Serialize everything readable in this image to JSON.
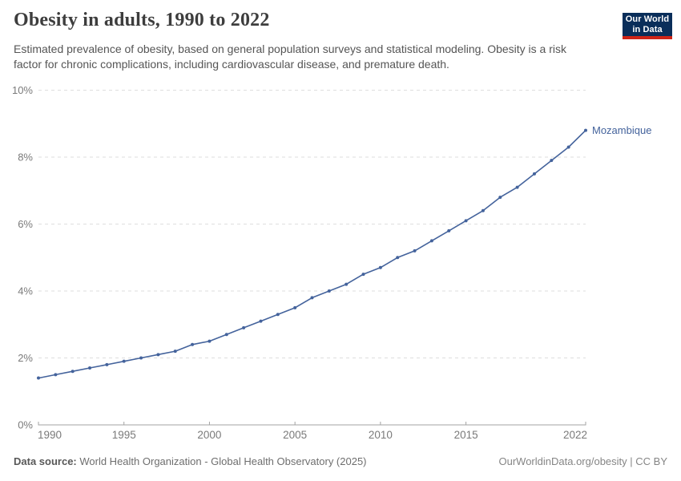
{
  "header": {
    "title": "Obesity in adults, 1990 to 2022",
    "subtitle": "Estimated prevalence of obesity, based on general population surveys and statistical modeling. Obesity is a risk factor for chronic complications, including cardiovascular disease, and premature death.",
    "logo": {
      "line1": "Our World",
      "line2": "in Data",
      "bg_color": "#0a2e5a",
      "stripe_color": "#cf2417"
    }
  },
  "chart_data": {
    "type": "line",
    "title": "Obesity in adults, 1990 to 2022",
    "x": [
      1990,
      1991,
      1992,
      1993,
      1994,
      1995,
      1996,
      1997,
      1998,
      1999,
      2000,
      2001,
      2002,
      2003,
      2004,
      2005,
      2006,
      2007,
      2008,
      2009,
      2010,
      2011,
      2012,
      2013,
      2014,
      2015,
      2016,
      2017,
      2018,
      2019,
      2020,
      2021,
      2022
    ],
    "series": [
      {
        "name": "Mozambique",
        "color": "#44639c",
        "values": [
          1.4,
          1.5,
          1.6,
          1.7,
          1.8,
          1.9,
          2.0,
          2.1,
          2.2,
          2.4,
          2.5,
          2.7,
          2.9,
          3.1,
          3.3,
          3.5,
          3.8,
          4.0,
          4.2,
          4.5,
          4.7,
          5.0,
          5.2,
          5.5,
          5.8,
          6.1,
          6.4,
          6.8,
          7.1,
          7.5,
          7.9,
          8.3,
          8.8
        ]
      }
    ],
    "xlabel": "",
    "ylabel": "",
    "ylim": [
      0,
      10
    ],
    "yticks": [
      0,
      2,
      4,
      6,
      8,
      10
    ],
    "ytick_suffix": "%",
    "xticks": [
      1990,
      1995,
      2000,
      2005,
      2010,
      2015,
      2022
    ],
    "grid": "horizontal-dashed",
    "legend_position": "end-of-line-label",
    "end_label": "Mozambique"
  },
  "footer": {
    "source_label": "Data source:",
    "source_text": " World Health Organization - Global Health Observatory (2025)",
    "credit": "OurWorldinData.org/obesity | CC BY"
  }
}
